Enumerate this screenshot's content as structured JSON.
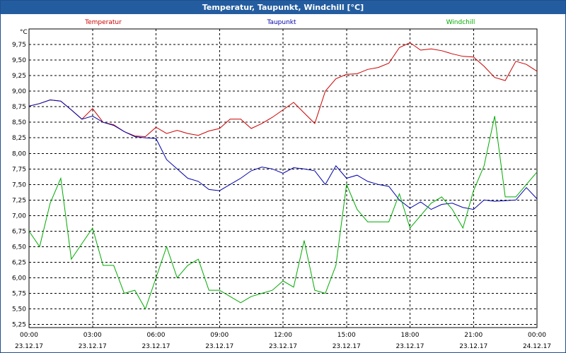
{
  "window": {
    "title": "Temperatur, Taupunkt, Windchill [°C]"
  },
  "chart_data": {
    "type": "line",
    "ylabel": "°C",
    "ylim": [
      5.2,
      10.0
    ],
    "xlim": [
      "2017-12-23 00:00",
      "2017-12-24 00:00"
    ],
    "grid": true,
    "legend_position": "top",
    "yticks": [
      "9,75",
      "9,50",
      "9,25",
      "9,00",
      "8,75",
      "8,50",
      "8,25",
      "8,00",
      "7,75",
      "7,50",
      "7,25",
      "7,00",
      "6,75",
      "6,50",
      "6,25",
      "6,00",
      "5,75",
      "5,50",
      "5,25"
    ],
    "xticks": [
      {
        "time": "00:00",
        "date": "23.12.17"
      },
      {
        "time": "03:00",
        "date": "23.12.17"
      },
      {
        "time": "06:00",
        "date": "23.12.17"
      },
      {
        "time": "09:00",
        "date": "23.12.17"
      },
      {
        "time": "12:00",
        "date": "23.12.17"
      },
      {
        "time": "15:00",
        "date": "23.12.17"
      },
      {
        "time": "18:00",
        "date": "23.12.17"
      },
      {
        "time": "21:00",
        "date": "23.12.17"
      },
      {
        "time": "00:00",
        "date": "24.12.17"
      }
    ],
    "x": [
      "00:00",
      "00:30",
      "01:00",
      "01:30",
      "02:00",
      "02:30",
      "03:00",
      "03:30",
      "04:00",
      "04:30",
      "05:00",
      "05:30",
      "06:00",
      "06:30",
      "07:00",
      "07:30",
      "08:00",
      "08:30",
      "09:00",
      "09:30",
      "10:00",
      "10:30",
      "11:00",
      "11:30",
      "12:00",
      "12:30",
      "13:00",
      "13:30",
      "14:00",
      "14:30",
      "15:00",
      "15:30",
      "16:00",
      "16:30",
      "17:00",
      "17:30",
      "18:00",
      "18:30",
      "19:00",
      "19:30",
      "20:00",
      "20:30",
      "21:00",
      "21:30",
      "22:00",
      "22:30",
      "23:00",
      "23:30",
      "24:00"
    ],
    "series": [
      {
        "name": "Temperatur",
        "color": "#cc0000",
        "values": [
          8.76,
          8.8,
          8.86,
          8.84,
          8.7,
          8.55,
          8.72,
          8.5,
          8.46,
          8.35,
          8.28,
          8.27,
          8.42,
          8.32,
          8.37,
          8.32,
          8.29,
          8.36,
          8.4,
          8.55,
          8.55,
          8.4,
          8.48,
          8.58,
          8.7,
          8.82,
          8.65,
          8.48,
          9.0,
          9.2,
          9.27,
          9.28,
          9.35,
          9.38,
          9.45,
          9.7,
          9.78,
          9.66,
          9.68,
          9.65,
          9.6,
          9.56,
          9.55,
          9.4,
          9.22,
          9.17,
          9.48,
          9.43,
          9.32
        ]
      },
      {
        "name": "Taupunkt",
        "color": "#0000aa",
        "values": [
          8.76,
          8.8,
          8.86,
          8.84,
          8.7,
          8.55,
          8.6,
          8.5,
          8.45,
          8.35,
          8.27,
          8.25,
          8.24,
          7.9,
          7.75,
          7.6,
          7.55,
          7.42,
          7.4,
          7.5,
          7.6,
          7.72,
          7.78,
          7.75,
          7.68,
          7.77,
          7.75,
          7.72,
          7.5,
          7.8,
          7.6,
          7.65,
          7.55,
          7.5,
          7.47,
          7.25,
          7.12,
          7.22,
          7.1,
          7.18,
          7.2,
          7.13,
          7.1,
          7.25,
          7.23,
          7.24,
          7.25,
          7.45,
          7.27
        ]
      },
      {
        "name": "Windchill",
        "color": "#00aa00",
        "values": [
          6.75,
          6.5,
          7.2,
          7.6,
          6.3,
          6.55,
          6.8,
          6.2,
          6.2,
          5.75,
          5.8,
          5.5,
          6.0,
          6.5,
          6.0,
          6.2,
          6.3,
          5.8,
          5.8,
          5.7,
          5.6,
          5.7,
          5.75,
          5.8,
          5.95,
          5.85,
          6.6,
          5.8,
          5.75,
          6.2,
          7.5,
          7.1,
          6.9,
          6.9,
          6.9,
          7.35,
          6.8,
          7.0,
          7.2,
          7.3,
          7.1,
          6.8,
          7.4,
          7.8,
          8.6,
          7.3,
          7.3,
          7.5,
          7.7
        ]
      }
    ]
  }
}
